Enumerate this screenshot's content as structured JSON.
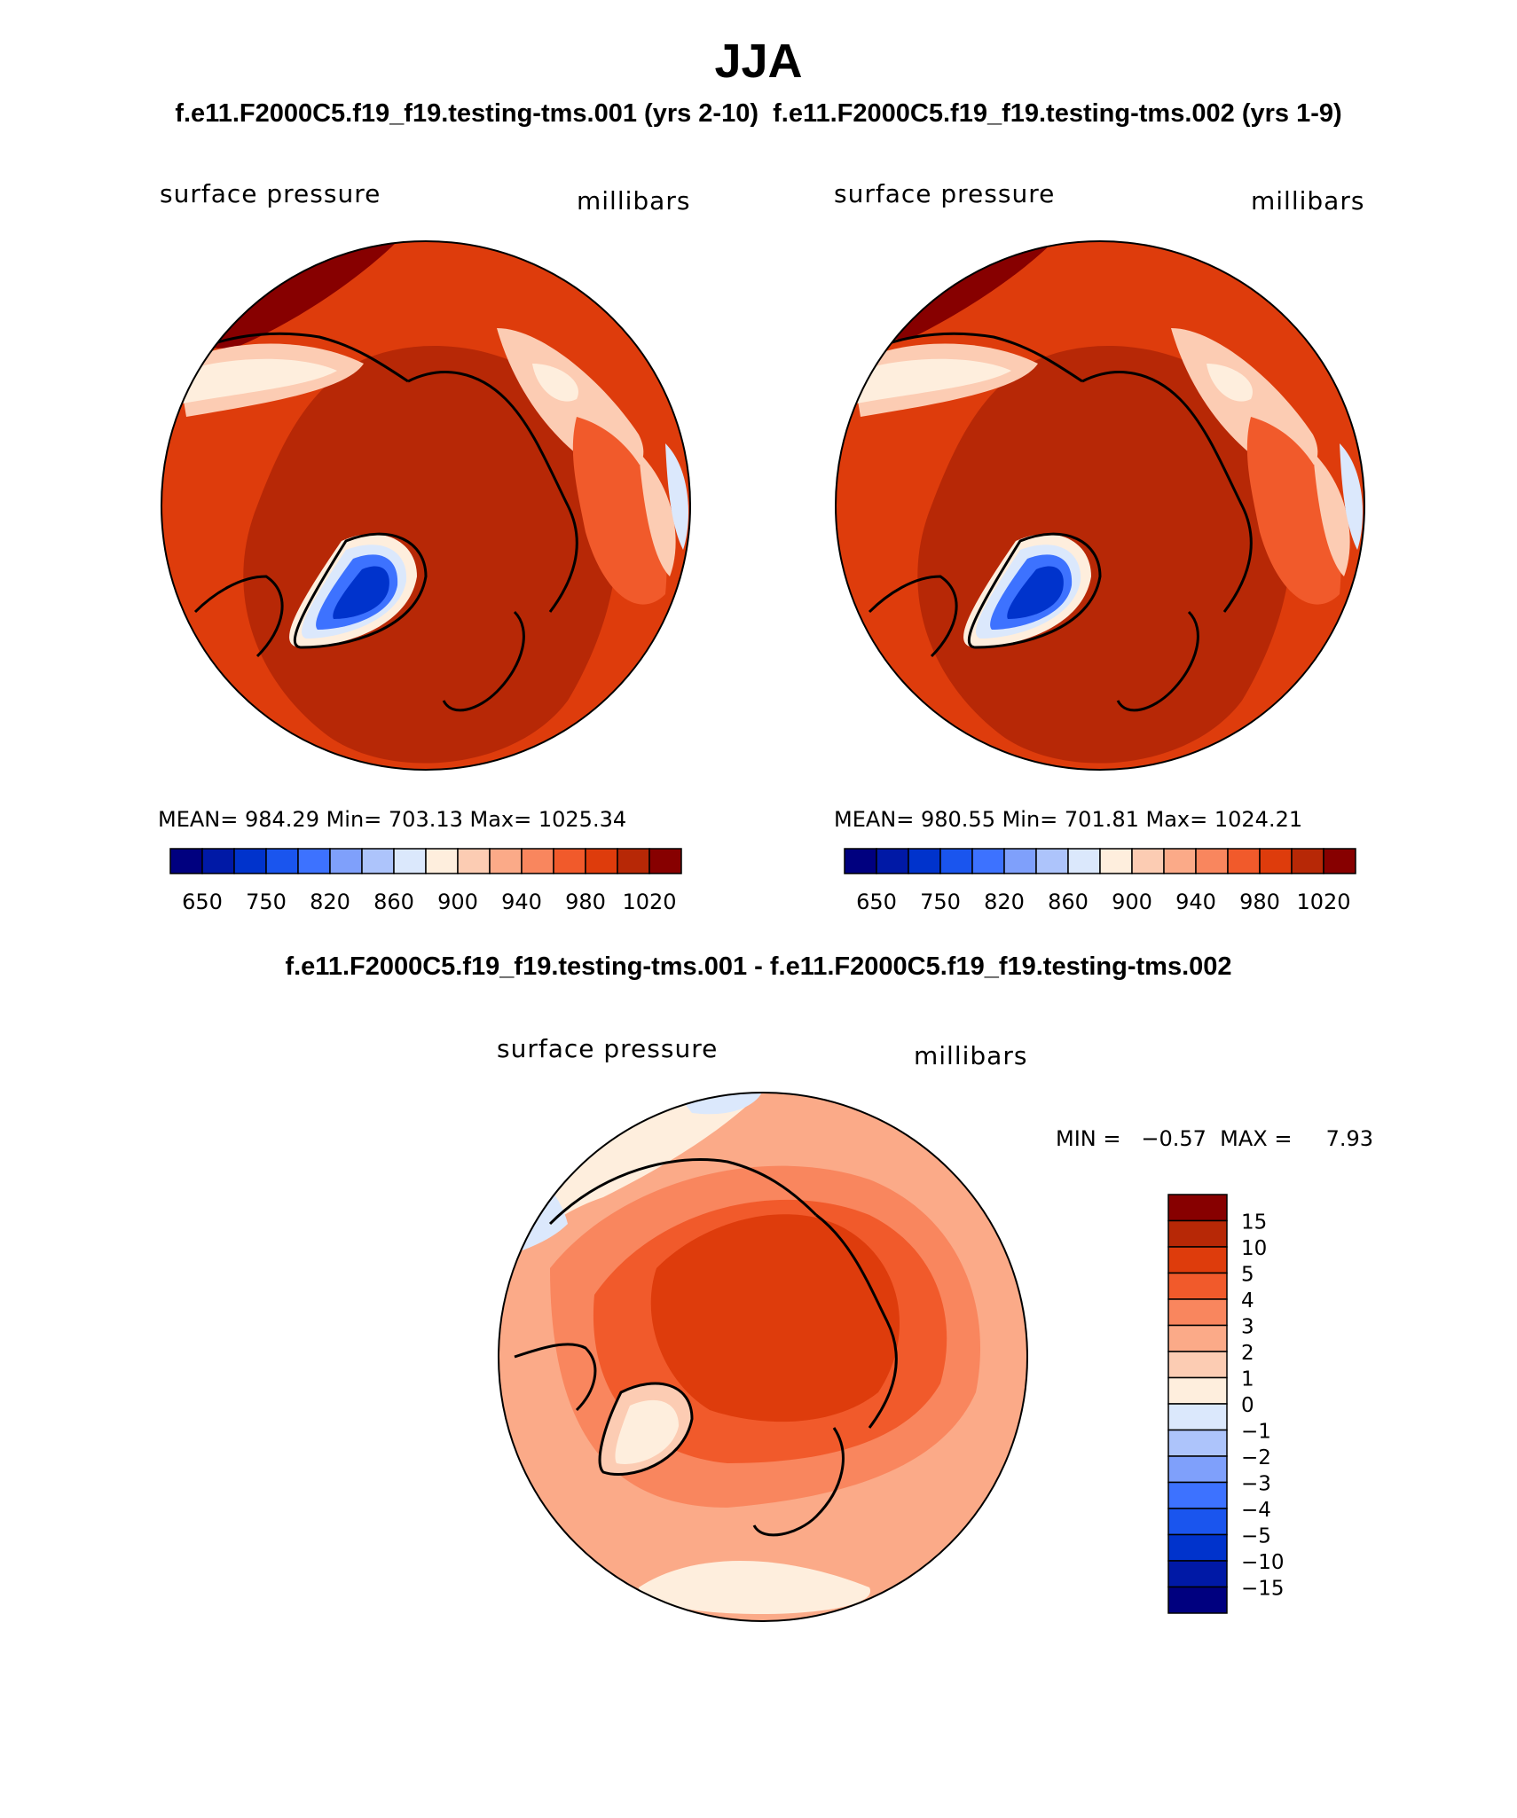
{
  "figure": {
    "title": "JJA",
    "subtitle_left": "f.e11.F2000C5.f19_f19.testing-tms.001 (yrs 2-10)",
    "subtitle_right": "f.e11.F2000C5.f19_f19.testing-tms.002 (yrs 1-9)",
    "diff_title": "f.e11.F2000C5.f19_f19.testing-tms.001 - f.e11.F2000C5.f19_f19.testing-tms.002"
  },
  "panels": [
    {
      "variable": "surface pressure",
      "units": "millibars",
      "stats": "MEAN= 984.29   Min= 703.13   Max= 1025.34"
    },
    {
      "variable": "surface pressure",
      "units": "millibars",
      "stats": "MEAN= 980.55   Min= 701.81   Max= 1024.21"
    },
    {
      "variable": "surface pressure",
      "units": "millibars",
      "stats": "MIN =   −0.57  MAX =     7.93"
    }
  ],
  "colorbar_main": {
    "colors": [
      "#00007f",
      "#0019a6",
      "#0033cc",
      "#1a55ee",
      "#3d72ff",
      "#7fa0fb",
      "#adc4fb",
      "#dbe8fc",
      "#feeedd",
      "#fcccb3",
      "#fbaa88",
      "#f9865e",
      "#f15a2b",
      "#de3c0c",
      "#b72806",
      "#870000"
    ],
    "tick_labels": [
      "650",
      "750",
      "820",
      "860",
      "900",
      "940",
      "980",
      "1020"
    ]
  },
  "colorbar_diff": {
    "colors": [
      "#870000",
      "#b72806",
      "#de3c0c",
      "#f15a2b",
      "#f9865e",
      "#fbaa88",
      "#fcccb3",
      "#feeedd",
      "#dbe8fc",
      "#adc4fb",
      "#7fa0fb",
      "#3d72ff",
      "#1a55ee",
      "#0033cc",
      "#0019a6",
      "#00007f"
    ],
    "tick_labels": [
      "15",
      "10",
      "5",
      "4",
      "3",
      "2",
      "1",
      "0",
      "−1",
      "−2",
      "−3",
      "−4",
      "−5",
      "−10",
      "−15"
    ]
  },
  "map_colors": {
    "p1_base": "#de3c0c",
    "p1_top": "#b72806",
    "p1_dark": "#870000",
    "light": "#fcccb3",
    "pale": "#feeedd",
    "blue_light": "#dbe8fc",
    "blue_mid": "#3d72ff",
    "blue_dark": "#0033cc",
    "mid_orange": "#f15a2b",
    "d_base": "#fbaa88",
    "d_mid": "#f9865e",
    "d_top": "#f15a2b",
    "d_core": "#de3c0c"
  }
}
